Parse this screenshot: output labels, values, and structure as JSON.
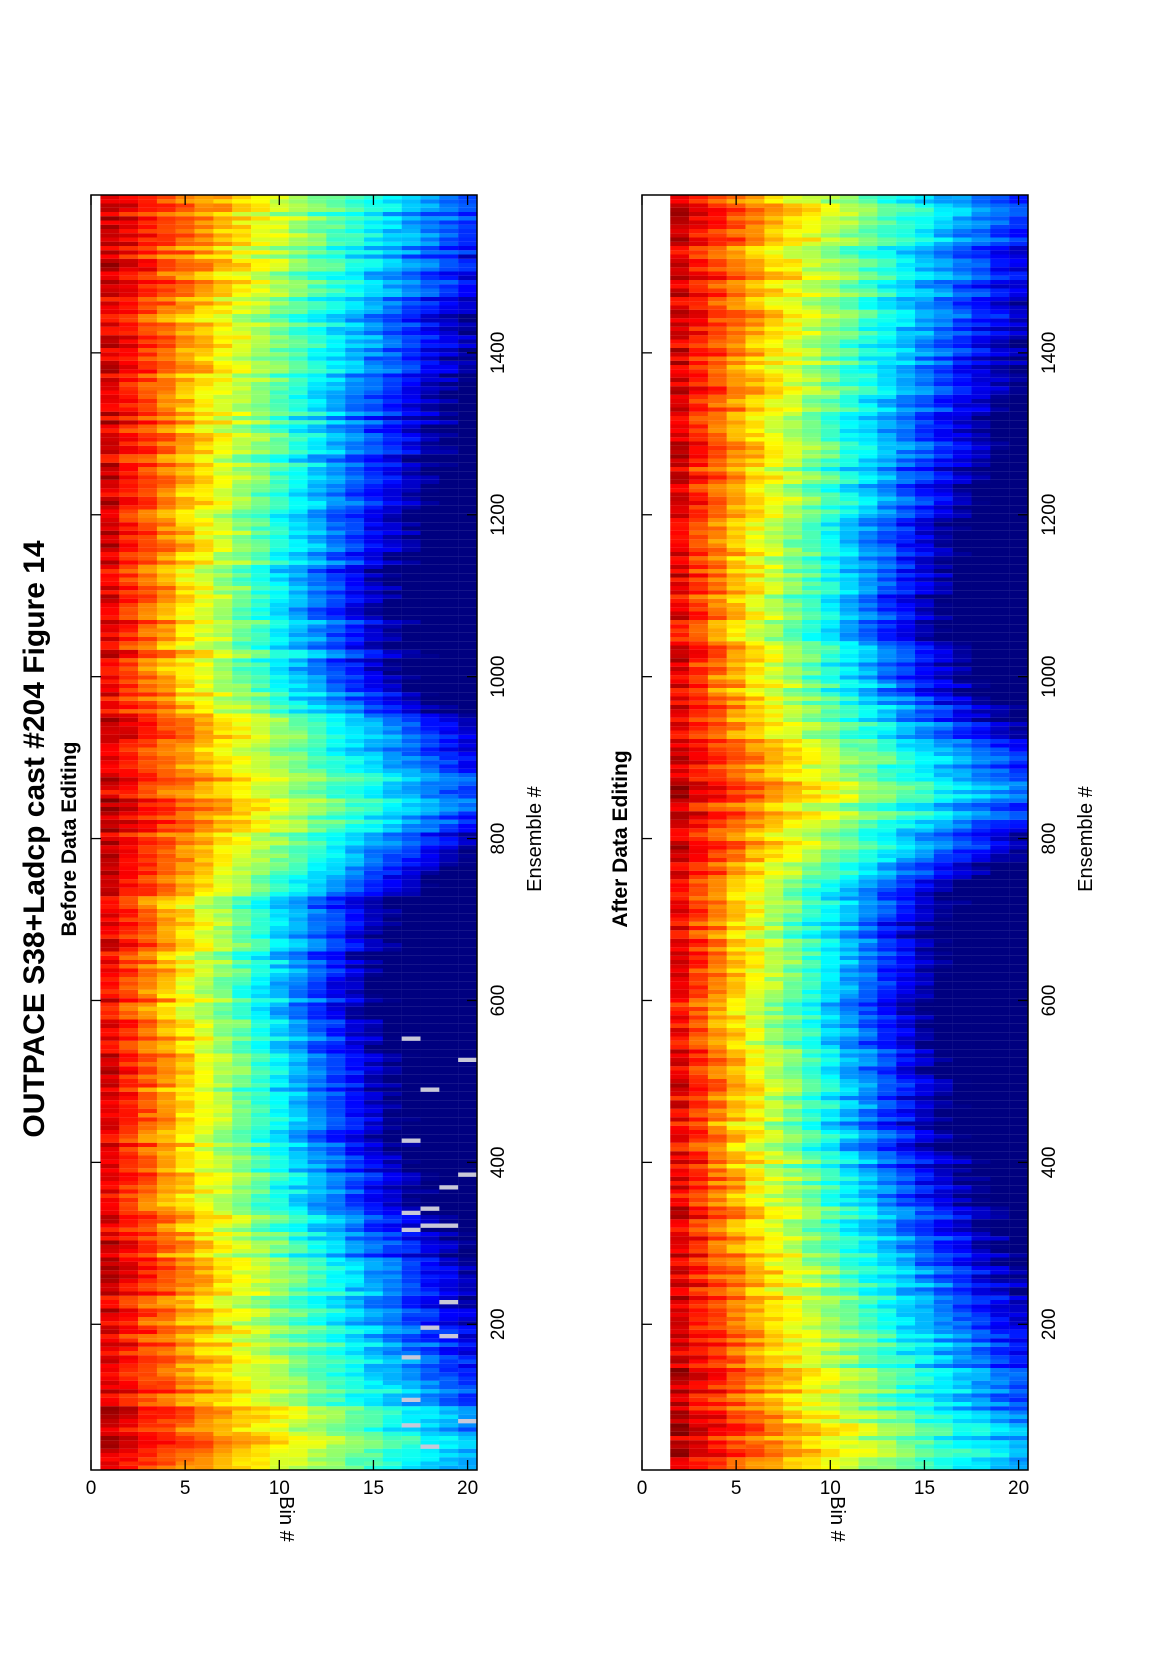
{
  "figure": {
    "title": "OUTPACE S38+Ladcp cast #204  Figure 14"
  },
  "chart_data": [
    {
      "type": "heatmap",
      "title": "Before Data Editing",
      "xlabel": "Ensemble #",
      "ylabel": "Bin #",
      "xlim": [
        20,
        1595
      ],
      "ylim": [
        0,
        20.5
      ],
      "x_ticks": [
        200,
        400,
        600,
        800,
        1000,
        1200,
        1400
      ],
      "y_ticks": [
        0,
        5,
        10,
        15,
        20
      ],
      "first_bin": 0.5,
      "colormap": "jet",
      "pattern": {
        "descents_to_ensemble": [
          410,
          1075
        ],
        "max_return_ensemble": 860,
        "profile_end_ensemble": 1595
      }
    },
    {
      "type": "heatmap",
      "title": "After Data Editing",
      "xlabel": "Ensemble #",
      "ylabel": "Bin #",
      "xlim": [
        20,
        1595
      ],
      "ylim": [
        0,
        20.5
      ],
      "x_ticks": [
        200,
        400,
        600,
        800,
        1000,
        1200,
        1400
      ],
      "y_ticks": [
        0,
        5,
        10,
        15,
        20
      ],
      "first_bin": 1.5,
      "colormap": "jet",
      "pattern": {
        "descents_to_ensemble": [
          410,
          1075
        ],
        "max_return_ensemble": 860,
        "profile_end_ensemble": 1595
      }
    }
  ]
}
